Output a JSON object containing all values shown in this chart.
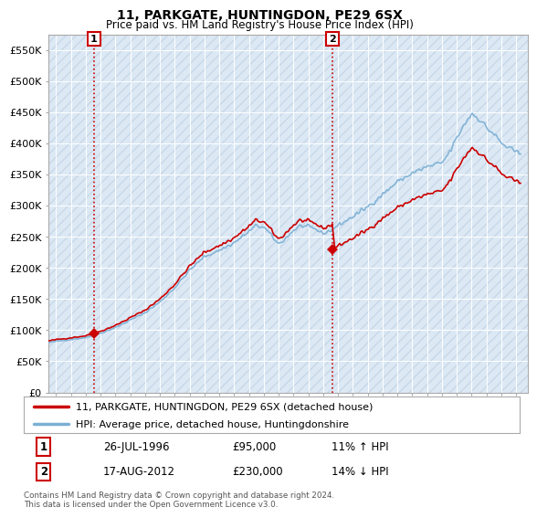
{
  "title": "11, PARKGATE, HUNTINGDON, PE29 6SX",
  "subtitle": "Price paid vs. HM Land Registry's House Price Index (HPI)",
  "legend_line1": "11, PARKGATE, HUNTINGDON, PE29 6SX (detached house)",
  "legend_line2": "HPI: Average price, detached house, Huntingdonshire",
  "annotation1_label": "1",
  "annotation1_date": "26-JUL-1996",
  "annotation1_price": "£95,000",
  "annotation1_hpi": "11% ↑ HPI",
  "annotation2_label": "2",
  "annotation2_date": "17-AUG-2012",
  "annotation2_price": "£230,000",
  "annotation2_hpi": "14% ↓ HPI",
  "footer": "Contains HM Land Registry data © Crown copyright and database right 2024.\nThis data is licensed under the Open Government Licence v3.0.",
  "sale1_year": 1996.57,
  "sale1_price": 95000,
  "sale2_year": 2012.63,
  "sale2_price": 230000,
  "price_line_color": "#cc0000",
  "hpi_line_color": "#7bafd4",
  "sale_marker_color": "#cc0000",
  "vline_color": "#cc0000",
  "annotation_box_color": "#cc0000",
  "grid_color": "#cccccc",
  "background_color": "#ffffff",
  "plot_bg_color": "#dce9f5",
  "ylim": [
    0,
    575000
  ],
  "yticks": [
    0,
    50000,
    100000,
    150000,
    200000,
    250000,
    300000,
    350000,
    400000,
    450000,
    500000,
    550000
  ],
  "xmin": 1993.5,
  "xmax": 2025.8
}
